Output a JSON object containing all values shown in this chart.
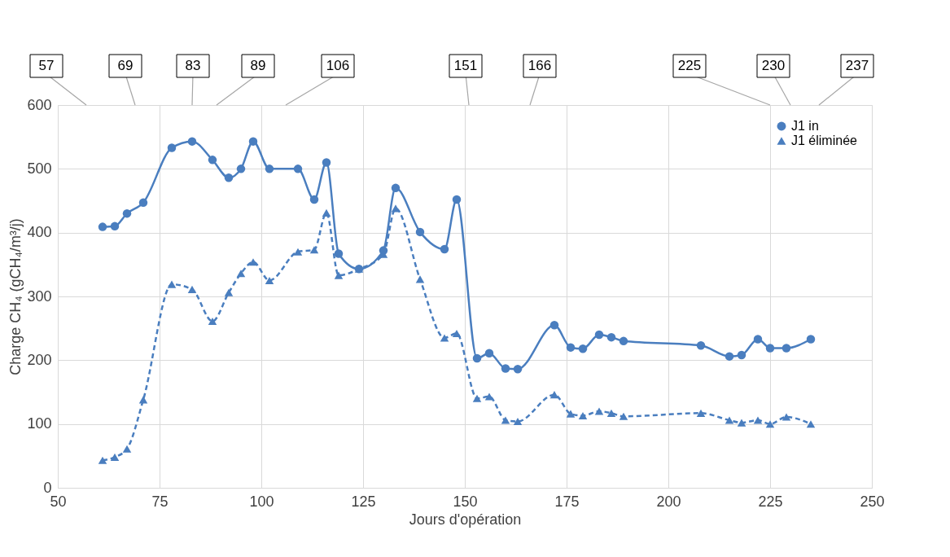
{
  "chart_data": {
    "type": "line",
    "xlabel": "Jours d'opération",
    "ylabel": "Charge CH₄ (gCH₄/m³/j)",
    "xlim": [
      50,
      250
    ],
    "xticks": [
      50,
      75,
      100,
      125,
      150,
      175,
      200,
      225,
      250
    ],
    "ylim": [
      0,
      600
    ],
    "yticks": [
      0,
      100,
      200,
      300,
      400,
      500,
      600
    ],
    "grid": true,
    "legend": "top right",
    "series": [
      {
        "name": "J1 in",
        "color": "#4a7ebf",
        "marker": "circle",
        "line_style": "solid",
        "x": [
          61,
          64,
          67,
          71,
          78,
          83,
          88,
          92,
          95,
          98,
          102,
          109,
          113,
          116,
          119,
          124,
          130,
          133,
          139,
          145,
          148,
          153,
          156,
          160,
          163,
          172,
          176,
          179,
          183,
          186,
          189,
          208,
          215,
          218,
          222,
          225,
          229,
          235
        ],
        "values": [
          409,
          410,
          430,
          447,
          533,
          543,
          514,
          486,
          500,
          543,
          500,
          500,
          452,
          510,
          367,
          343,
          372,
          470,
          401,
          374,
          452,
          203,
          211,
          187,
          186,
          255,
          220,
          218,
          240,
          236,
          230,
          223,
          206,
          208,
          233,
          219,
          219,
          233
        ]
      },
      {
        "name": "J1 éliminée",
        "color": "#4a7ebf",
        "marker": "triangle",
        "line_style": "dashed",
        "x": [
          61,
          64,
          67,
          71,
          78,
          83,
          88,
          92,
          95,
          98,
          102,
          109,
          113,
          116,
          119,
          124,
          130,
          133,
          139,
          145,
          148,
          153,
          156,
          160,
          163,
          172,
          176,
          179,
          183,
          186,
          189,
          208,
          215,
          218,
          222,
          225,
          229,
          235
        ],
        "values": [
          43,
          48,
          61,
          138,
          319,
          311,
          261,
          306,
          336,
          354,
          325,
          370,
          373,
          431,
          333,
          343,
          366,
          438,
          327,
          235,
          242,
          140,
          143,
          106,
          104,
          146,
          116,
          113,
          120,
          117,
          112,
          117,
          106,
          102,
          106,
          100,
          111,
          100
        ]
      }
    ],
    "annotations": [
      "57",
      "69",
      "83",
      "89",
      "106",
      "151",
      "166",
      "225",
      "230",
      "237"
    ]
  }
}
